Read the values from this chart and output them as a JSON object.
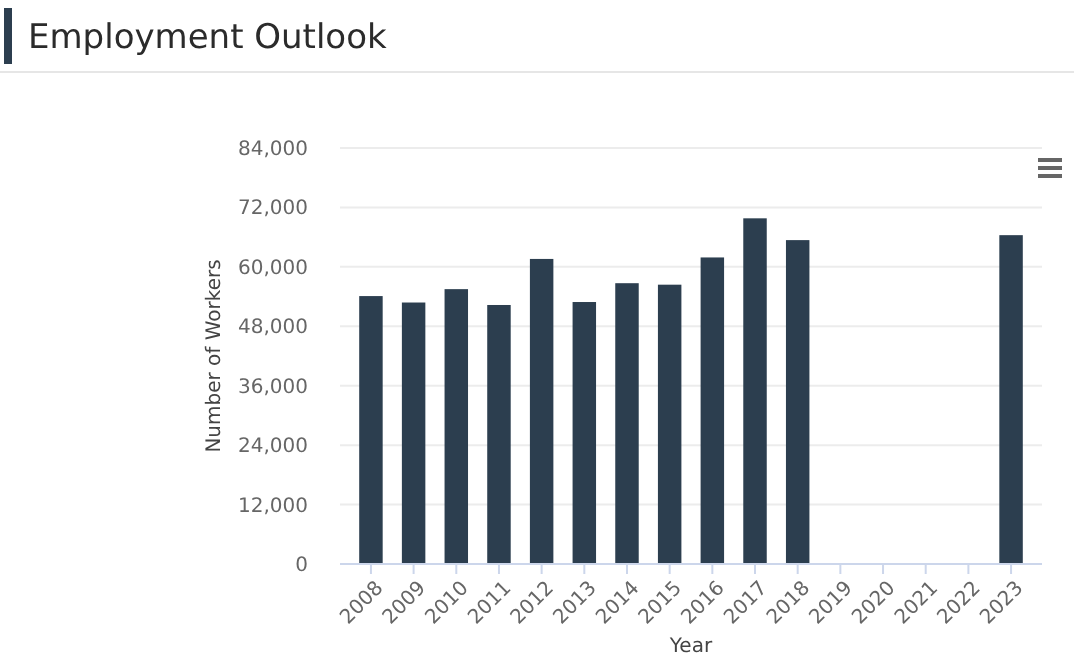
{
  "chart_data": {
    "type": "bar",
    "title": "Employment Outlook",
    "xlabel": "Year",
    "ylabel": "Number of Workers",
    "categories": [
      "2008",
      "2009",
      "2010",
      "2011",
      "2012",
      "2013",
      "2014",
      "2015",
      "2016",
      "2017",
      "2018",
      "2019",
      "2020",
      "2021",
      "2022",
      "2023"
    ],
    "values": [
      54100,
      52800,
      55500,
      52300,
      61600,
      52900,
      56700,
      56400,
      61900,
      69800,
      65400,
      null,
      null,
      null,
      null,
      66400
    ],
    "color": "#2c3e4f",
    "ylim": [
      0,
      84000
    ],
    "yticks": [
      {
        "value": 0,
        "label": "0"
      },
      {
        "value": 12000,
        "label": "12,000"
      },
      {
        "value": 24000,
        "label": "24,000"
      },
      {
        "value": 36000,
        "label": "36,000"
      },
      {
        "value": 48000,
        "label": "48,000"
      },
      {
        "value": 60000,
        "label": "60,000"
      },
      {
        "value": 72000,
        "label": "72,000"
      },
      {
        "value": 84000,
        "label": "84,000"
      }
    ],
    "grid": "y"
  }
}
